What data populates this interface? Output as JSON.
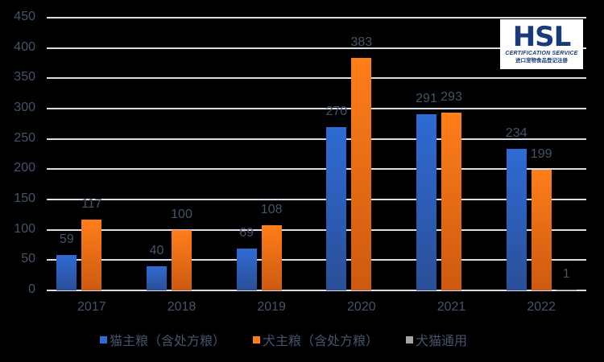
{
  "chart_data": {
    "type": "bar",
    "title": "",
    "xlabel": "",
    "ylabel": "",
    "categories": [
      "2017",
      "2018",
      "2019",
      "2020",
      "2021",
      "2022"
    ],
    "series": [
      {
        "name": "猫主粮（含处方粮）",
        "color": "#2F6BD4",
        "values": [
          59,
          40,
          69,
          270,
          291,
          234
        ]
      },
      {
        "name": "犬主粮（含处方粮）",
        "color": "#FF7E1A",
        "values": [
          117,
          100,
          108,
          383,
          293,
          199
        ]
      },
      {
        "name": "犬猫通用",
        "color": "#A5A5A5",
        "values": [
          0,
          0,
          0,
          0,
          0,
          1
        ]
      }
    ],
    "data_labels": [
      [
        "59",
        "40",
        "69",
        "270",
        "291",
        "234"
      ],
      [
        "117",
        "100",
        "108",
        "383",
        "293",
        "199"
      ],
      [
        "",
        "",
        "",
        "",
        "",
        "1"
      ]
    ],
    "yticks": [
      "0",
      "50",
      "100",
      "150",
      "200",
      "250",
      "300",
      "350",
      "400",
      "450"
    ],
    "ylim": [
      0,
      450
    ],
    "grid": true,
    "legend_position": "bottom"
  },
  "logo": {
    "main": "HSL",
    "subtitle": "CERTIFICATION SERVICE",
    "chinese": "进口宠物食品登记注册"
  }
}
